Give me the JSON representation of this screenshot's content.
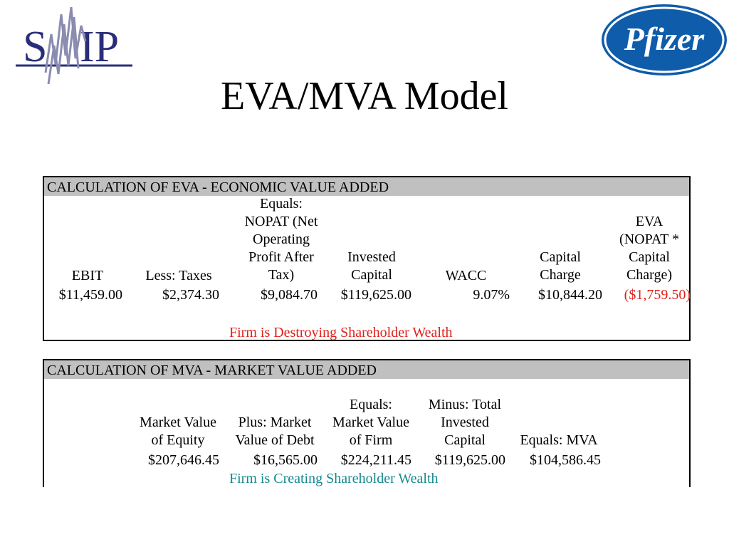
{
  "logos": {
    "left_logo_text": "SMIP",
    "right_logo_text": "Pfizer"
  },
  "title": "EVA/MVA Model",
  "colors": {
    "header_bg": "#c0c0c0",
    "negative_red": "#e0211b",
    "positive_teal": "#148a8f",
    "smip_navy": "#2a2e7a",
    "pfizer_blue": "#0f5cab"
  },
  "eva": {
    "header": "CALCULATION OF EVA - ECONOMIC VALUE ADDED",
    "columns": [
      "EBIT",
      "Less: Taxes",
      "Equals:\nNOPAT (Net\nOperating\nProfit After\nTax)",
      "Invested\nCapital",
      "WACC",
      "Capital\nCharge",
      "EVA\n(NOPAT *\nCapital\nCharge)"
    ],
    "values": [
      "$11,459.00",
      "$2,374.30",
      "$9,084.70",
      "$119,625.00",
      "9.07%",
      "$10,844.20",
      "($1,759.50)"
    ],
    "conclusion": "Firm is Destroying Shareholder Wealth"
  },
  "mva": {
    "header": "CALCULATION OF MVA - MARKET VALUE ADDED",
    "columns": [
      "Market Value\nof Equity",
      "Plus: Market\nValue of Debt",
      "Equals:\nMarket Value\nof Firm",
      "Minus: Total\nInvested\nCapital",
      "Equals: MVA"
    ],
    "values": [
      "$207,646.45",
      "$16,565.00",
      "$224,211.45",
      "$119,625.00",
      "$104,586.45"
    ],
    "conclusion": "Firm is Creating Shareholder Wealth"
  }
}
